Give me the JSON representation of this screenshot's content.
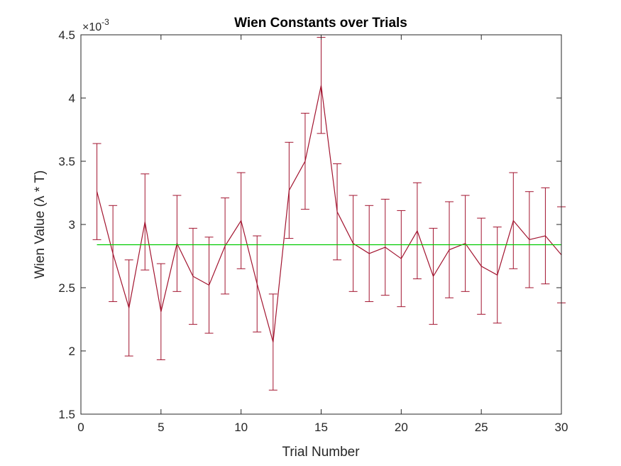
{
  "chart_data": {
    "type": "line",
    "title": "Wien Constants over Trials",
    "xlabel": "Trial Number",
    "ylabel": "Wien Value (λ * T)",
    "y_exponent_label": "×10",
    "y_exponent_power": "-3",
    "xlim": [
      0,
      30
    ],
    "ylim": [
      1.5,
      4.5
    ],
    "y_scale_factor": 0.001,
    "grid": false,
    "x_ticks": [
      0,
      5,
      10,
      15,
      20,
      25,
      30
    ],
    "x_tick_labels": [
      "0",
      "5",
      "10",
      "15",
      "20",
      "25",
      "30"
    ],
    "y_ticks": [
      1.5,
      2,
      2.5,
      3,
      3.5,
      4,
      4.5
    ],
    "y_tick_labels": [
      "1.5",
      "2",
      "2.5",
      "3",
      "3.5",
      "4",
      "4.5"
    ],
    "series": [
      {
        "type": "errorbar",
        "color": "#A2142F",
        "x": [
          1,
          2,
          3,
          4,
          5,
          6,
          7,
          8,
          9,
          10,
          11,
          12,
          13,
          14,
          15,
          16,
          17,
          18,
          19,
          20,
          21,
          22,
          23,
          24,
          25,
          26,
          27,
          28,
          29,
          30
        ],
        "values": [
          3.26,
          2.77,
          2.34,
          3.02,
          2.31,
          2.85,
          2.59,
          2.52,
          2.83,
          3.03,
          2.53,
          2.07,
          3.27,
          3.5,
          4.1,
          3.1,
          2.85,
          2.77,
          2.82,
          2.73,
          2.95,
          2.59,
          2.8,
          2.85,
          2.67,
          2.6,
          3.03,
          2.88,
          2.91,
          2.76
        ],
        "error": [
          0.38,
          0.38,
          0.38,
          0.38,
          0.38,
          0.38,
          0.38,
          0.38,
          0.38,
          0.38,
          0.38,
          0.38,
          0.38,
          0.38,
          0.38,
          0.38,
          0.38,
          0.38,
          0.38,
          0.38,
          0.38,
          0.38,
          0.38,
          0.38,
          0.38,
          0.38,
          0.38,
          0.38,
          0.38,
          0.38
        ]
      },
      {
        "type": "line",
        "color": "#00CC00",
        "x": [
          1,
          30
        ],
        "values": [
          2.84,
          2.84
        ]
      }
    ]
  }
}
